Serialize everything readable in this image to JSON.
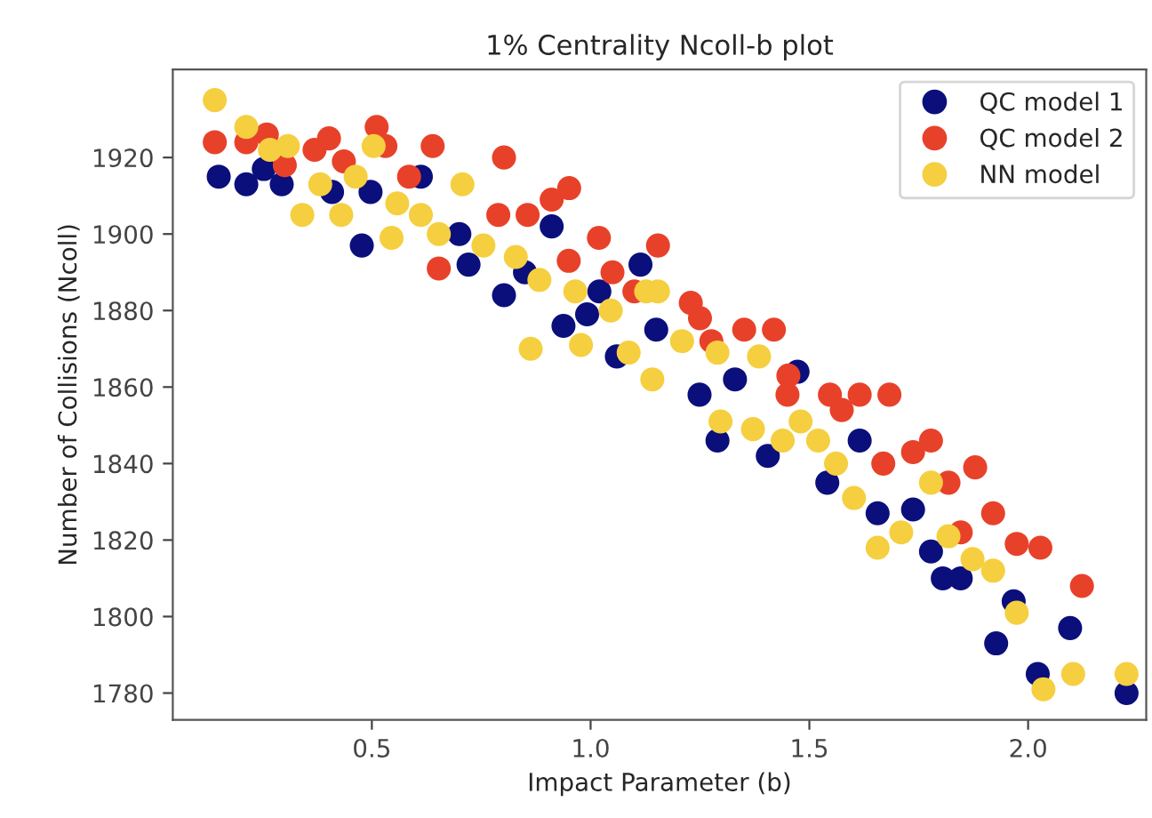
{
  "chart_data": {
    "type": "scatter",
    "title": "1% Centrality Ncoll-b plot",
    "xlabel": "Impact Parameter (b)",
    "ylabel": "Number of Collisions (Ncoll)",
    "xlim": [
      0.045,
      2.27
    ],
    "ylim": [
      1773,
      1943
    ],
    "xticks": [
      0.5,
      {
        "value": 1,
        "label": "1.0"
      },
      1.5,
      {
        "value": 2,
        "label": "2.0"
      }
    ],
    "yticks": [
      1780,
      1800,
      1820,
      1840,
      1860,
      1880,
      1900,
      1920
    ],
    "grid": false,
    "legend": "top right",
    "marker": "circle",
    "series": [
      {
        "name": "QC model 1",
        "color": "#0a0f7c",
        "x": [
          0.15,
          0.213,
          0.294,
          0.253,
          0.409,
          0.477,
          0.612,
          0.497,
          0.721,
          0.802,
          0.911,
          0.938,
          0.992,
          1.06,
          1.114,
          1.473,
          1.249,
          1.29,
          1.405,
          1.615,
          1.541,
          1.656,
          1.737,
          1.778,
          1.805,
          1.846,
          1.927,
          1.967,
          2.096,
          2.022,
          2.225,
          1.15,
          1.33,
          1.02,
          0.85,
          0.7
        ],
        "values": [
          1915,
          1913,
          1913,
          1917,
          1911,
          1897,
          1915,
          1911,
          1892,
          1884,
          1902,
          1876,
          1879,
          1868,
          1892,
          1864,
          1858,
          1846,
          1842,
          1846,
          1835,
          1827,
          1828,
          1817,
          1810,
          1810,
          1793,
          1804,
          1797,
          1785,
          1780,
          1875,
          1862,
          1885,
          1890,
          1900
        ]
      },
      {
        "name": "QC model 2",
        "color": "#e8412a",
        "x": [
          0.141,
          0.213,
          0.26,
          0.402,
          0.511,
          0.531,
          0.639,
          0.802,
          0.585,
          0.369,
          0.301,
          0.436,
          0.951,
          0.911,
          0.789,
          0.856,
          0.653,
          1.019,
          1.154,
          1.229,
          1.351,
          1.419,
          1.547,
          1.615,
          1.683,
          1.452,
          1.276,
          1.778,
          1.737,
          1.879,
          1.818,
          1.92,
          1.974,
          2.028,
          2.123,
          1.846,
          1.574,
          1.669,
          1.05,
          1.1,
          1.25,
          1.45,
          0.95
        ],
        "values": [
          1924,
          1924,
          1926,
          1925,
          1928,
          1923,
          1923,
          1920,
          1915,
          1922,
          1918,
          1919,
          1912,
          1909,
          1905,
          1905,
          1891,
          1899,
          1897,
          1882,
          1875,
          1875,
          1858,
          1858,
          1858,
          1863,
          1872,
          1846,
          1843,
          1839,
          1835,
          1827,
          1819,
          1818,
          1808,
          1822,
          1854,
          1840,
          1890,
          1885,
          1878,
          1858,
          1893
        ]
      },
      {
        "name": "NN model",
        "color": "#f5cf3f",
        "x": [
          0.141,
          0.213,
          0.267,
          0.308,
          0.341,
          0.43,
          0.382,
          0.463,
          0.504,
          0.545,
          0.558,
          0.612,
          0.653,
          0.707,
          0.755,
          0.829,
          0.863,
          0.978,
          0.883,
          0.965,
          1.046,
          1.087,
          1.141,
          1.127,
          1.154,
          1.209,
          1.29,
          1.385,
          1.297,
          1.371,
          1.48,
          1.52,
          1.561,
          1.602,
          1.656,
          1.71,
          1.778,
          1.818,
          1.873,
          1.92,
          1.974,
          2.035,
          2.103,
          2.225,
          1.439
        ],
        "values": [
          1935,
          1928,
          1922,
          1923,
          1905,
          1905,
          1913,
          1915,
          1923,
          1899,
          1908,
          1905,
          1900,
          1913,
          1897,
          1894,
          1870,
          1871,
          1888,
          1885,
          1880,
          1869,
          1862,
          1885,
          1885,
          1872,
          1869,
          1868,
          1851,
          1849,
          1851,
          1846,
          1840,
          1831,
          1818,
          1822,
          1835,
          1821,
          1815,
          1812,
          1801,
          1781,
          1785,
          1785,
          1846
        ]
      }
    ]
  }
}
